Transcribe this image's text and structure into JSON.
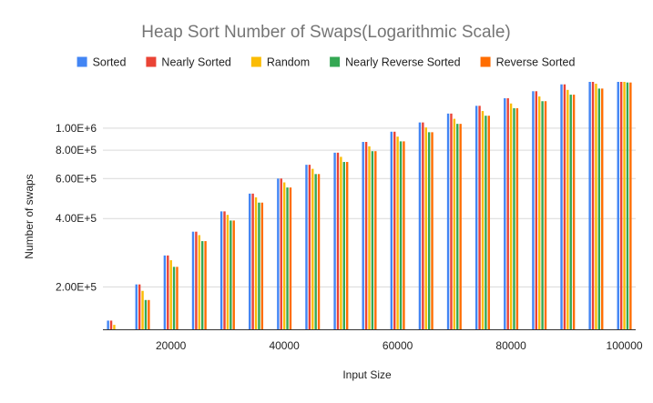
{
  "chart_data": {
    "type": "bar",
    "title": "Heap Sort Number of Swaps(Logarithmic Scale)",
    "xlabel": "Input Size",
    "ylabel": "Number of swaps",
    "y_scale": "log",
    "ylim": [
      130000,
      1600000
    ],
    "yticks": [
      {
        "value": 200000,
        "label": "2.00E+5"
      },
      {
        "value": 400000,
        "label": "4.00E+5"
      },
      {
        "value": 600000,
        "label": "6.00E+5"
      },
      {
        "value": 800000,
        "label": "8.00E+5"
      },
      {
        "value": 1000000,
        "label": "1.00E+6"
      }
    ],
    "xticks": [
      {
        "value": 20000,
        "label": "20000"
      },
      {
        "value": 40000,
        "label": "40000"
      },
      {
        "value": 60000,
        "label": "60000"
      },
      {
        "value": 80000,
        "label": "80000"
      },
      {
        "value": 100000,
        "label": "100000"
      }
    ],
    "xlim": [
      8000,
      102000
    ],
    "grid": "horizontal",
    "legend_position": "top",
    "x": [
      10000,
      15000,
      20000,
      25000,
      30000,
      35000,
      40000,
      45000,
      50000,
      55000,
      60000,
      65000,
      70000,
      75000,
      80000,
      85000,
      90000,
      95000,
      100000
    ],
    "series": [
      {
        "name": "Sorted",
        "color": "#4285f4",
        "values": [
          142000,
          205000,
          275000,
          350000,
          430000,
          515000,
          600000,
          690000,
          780000,
          870000,
          965000,
          1060000,
          1160000,
          1255000,
          1355000,
          1455000,
          1560000,
          1660000,
          1760000
        ]
      },
      {
        "name": "Nearly Sorted",
        "color": "#ea4335",
        "values": [
          142000,
          205000,
          275000,
          350000,
          430000,
          515000,
          600000,
          690000,
          780000,
          870000,
          965000,
          1060000,
          1160000,
          1255000,
          1355000,
          1455000,
          1560000,
          1660000,
          1760000
        ]
      },
      {
        "name": "Random",
        "color": "#fbbc04",
        "values": [
          136000,
          192000,
          262000,
          338000,
          415000,
          496000,
          577000,
          662000,
          748000,
          832000,
          918000,
          1008000,
          1100000,
          1190000,
          1285000,
          1380000,
          1475000,
          1570000,
          1665000
        ]
      },
      {
        "name": "Nearly Reverse Sorted",
        "color": "#34a853",
        "values": [
          125000,
          175000,
          245000,
          318000,
          392000,
          470000,
          548000,
          628000,
          710000,
          792000,
          875000,
          960000,
          1045000,
          1135000,
          1225000,
          1315000,
          1405000,
          1495000,
          1590000
        ]
      },
      {
        "name": "Reverse Sorted",
        "color": "#ff6d01",
        "values": [
          125000,
          175000,
          245000,
          318000,
          392000,
          470000,
          548000,
          628000,
          710000,
          792000,
          875000,
          960000,
          1045000,
          1135000,
          1225000,
          1315000,
          1405000,
          1495000,
          1590000
        ]
      }
    ]
  }
}
